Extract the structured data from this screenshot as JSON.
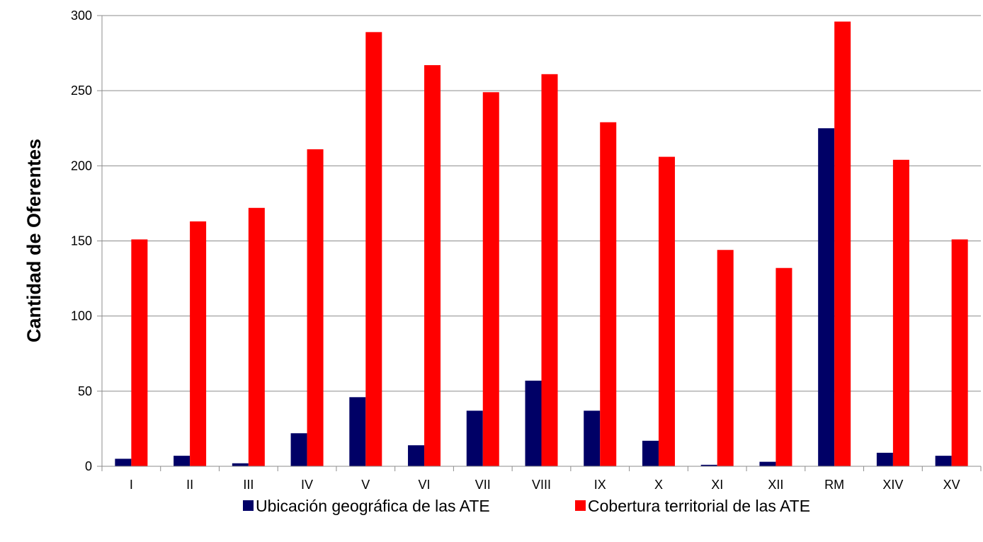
{
  "chart_data": {
    "type": "bar",
    "title": "",
    "xlabel": "",
    "ylabel": "Cantidad de Oferentes",
    "ylim": [
      0,
      300
    ],
    "yticks": [
      0,
      50,
      100,
      150,
      200,
      250,
      300
    ],
    "grid": true,
    "legend_position": "bottom",
    "categories": [
      "I",
      "II",
      "III",
      "IV",
      "V",
      "VI",
      "VII",
      "VIII",
      "IX",
      "X",
      "XI",
      "XII",
      "RM",
      "XIV",
      "XV"
    ],
    "series": [
      {
        "name": "Ubicación geográfica de las ATE",
        "color": "#000066",
        "values": [
          5,
          7,
          2,
          22,
          46,
          14,
          37,
          57,
          37,
          17,
          1,
          3,
          225,
          9,
          7
        ]
      },
      {
        "name": "Cobertura territorial de las ATE",
        "color": "#ff0000",
        "values": [
          151,
          163,
          172,
          211,
          289,
          267,
          249,
          261,
          229,
          206,
          144,
          132,
          296,
          204,
          151
        ]
      }
    ]
  }
}
